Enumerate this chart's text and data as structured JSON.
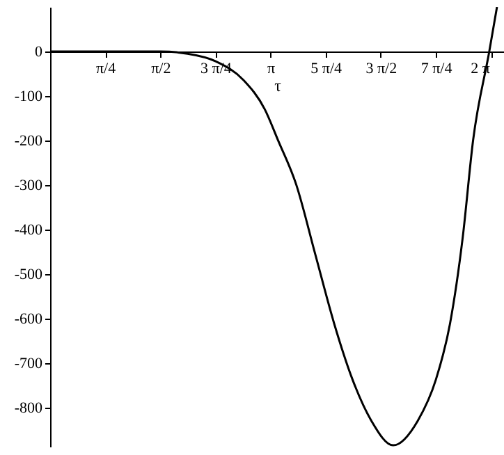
{
  "chart_data": {
    "type": "line",
    "xlabel": "τ",
    "color": "#000000",
    "x": [
      0,
      1.57,
      1.96,
      2.36,
      2.76,
      3.06,
      3.25,
      3.51,
      3.78,
      4.05,
      4.31,
      4.58,
      4.89,
      5.24,
      5.5,
      5.7,
      5.88,
      6.03,
      6.26,
      6.37
    ],
    "values": [
      0,
      0,
      -5,
      -22,
      -65,
      -130,
      -200,
      -300,
      -456,
      -612,
      -737,
      -830,
      -885,
      -830,
      -737,
      -612,
      -420,
      -199,
      0,
      100
    ],
    "xlim": [
      0,
      6.47
    ],
    "ylim": [
      -888,
      100
    ],
    "xticks": [
      {
        "value": 0.785,
        "label": "π/4"
      },
      {
        "value": 1.571,
        "label": "π/2"
      },
      {
        "value": 2.356,
        "label": "3 π/4"
      },
      {
        "value": 3.142,
        "label": "π"
      },
      {
        "value": 3.927,
        "label": "5 π/4"
      },
      {
        "value": 4.712,
        "label": "3 π/2"
      },
      {
        "value": 5.498,
        "label": "7 π/4"
      },
      {
        "value": 6.283,
        "label": "2 π"
      }
    ],
    "yticks": [
      0,
      -100,
      -200,
      -300,
      -400,
      -500,
      -600,
      -700,
      -800
    ],
    "grid": false,
    "line_style": "solid",
    "marker": "none"
  }
}
